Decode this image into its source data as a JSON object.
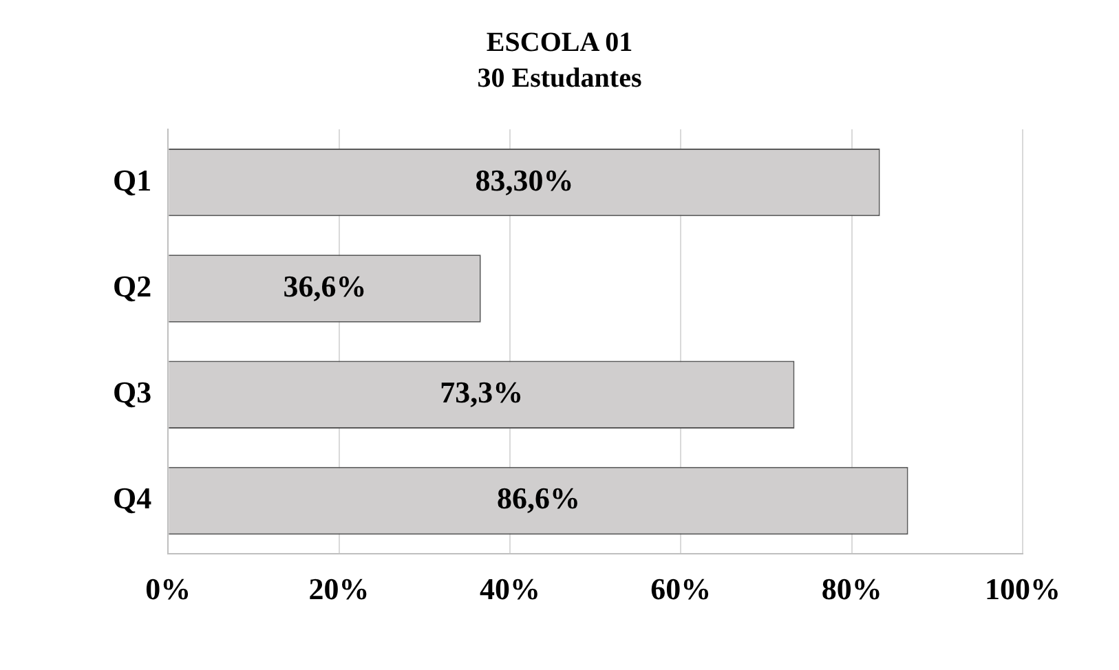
{
  "chart_data": {
    "type": "bar",
    "orientation": "horizontal",
    "title": "ESCOLA 01",
    "subtitle": "30 Estudantes",
    "categories": [
      "Q1",
      "Q2",
      "Q3",
      "Q4"
    ],
    "values": [
      83.3,
      36.6,
      73.3,
      86.6
    ],
    "value_labels": [
      "83,30%",
      "36,6%",
      "73,3%",
      "86,6%"
    ],
    "color": "#d0cece",
    "xlim": [
      0,
      100
    ],
    "xticks": [
      {
        "value": 0,
        "label": "0%"
      },
      {
        "value": 20,
        "label": "20%"
      },
      {
        "value": 40,
        "label": "40%"
      },
      {
        "value": 60,
        "label": "60%"
      },
      {
        "value": 80,
        "label": "80%"
      },
      {
        "value": 100,
        "label": "100%"
      }
    ],
    "grid": "x",
    "legend": false
  }
}
